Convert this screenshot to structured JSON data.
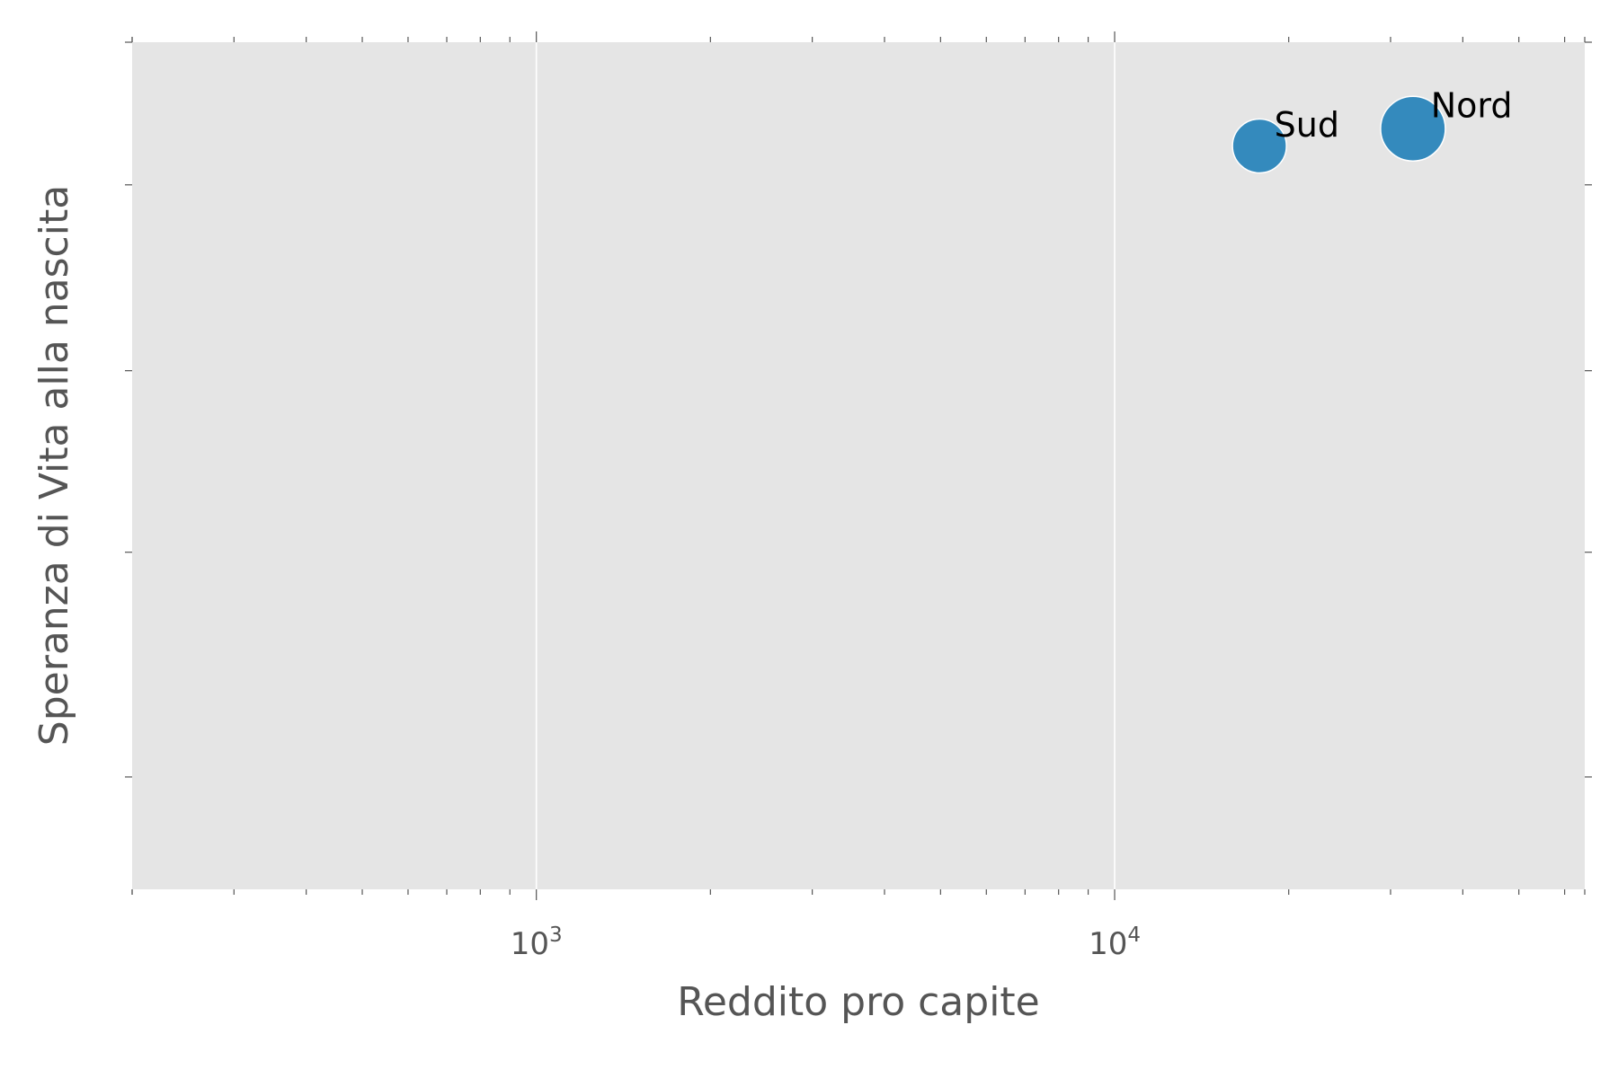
{
  "chart_data": {
    "type": "scatter",
    "title": "",
    "xlabel": "Reddito pro capite",
    "ylabel": "Speranza di Vita alla nascita",
    "x_scale": "log",
    "xlim": [
      200,
      65000
    ],
    "ylim": [
      64.7,
      84.3
    ],
    "x_tick_labels": [
      {
        "value": 1000,
        "base": "10",
        "exponent": "3"
      },
      {
        "value": 10000,
        "base": "10",
        "exponent": "4"
      }
    ],
    "y_ticks": [
      67.3,
      72.5,
      76.7,
      81.0,
      84.3
    ],
    "y_tick_labels_shown": false,
    "grid": true,
    "points": [
      {
        "label": "Sud",
        "x": 17800,
        "y": 81.9,
        "size": 0.5
      },
      {
        "label": "Nord",
        "x": 32800,
        "y": 82.3,
        "size": 1.0
      }
    ],
    "colors": {
      "point": "#348abd",
      "background": "#e5e5e5",
      "grid": "#ffffff"
    }
  }
}
